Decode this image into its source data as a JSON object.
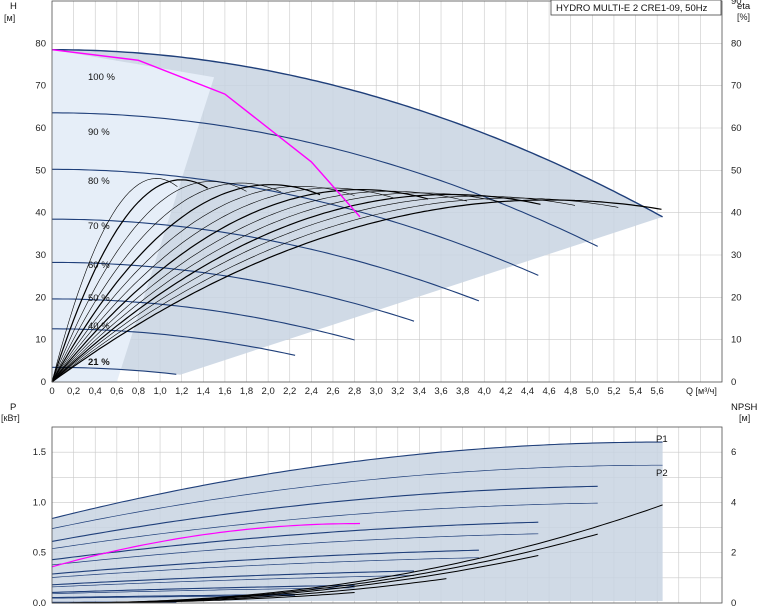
{
  "title": "HYDRO MULTI-E 2 CRE1-09, 50Hz",
  "colors": {
    "area_fill": "#c8d4e2",
    "curve_dark": "#1f3f7a",
    "efficiency": "#000000",
    "highlight": "#ff00ff",
    "grid": "#c9c9c9"
  },
  "chart_data": [
    {
      "type": "line",
      "name": "head",
      "ylabel": "H",
      "yunit": "[м]",
      "y2label": "eta",
      "y2unit": "[%]",
      "xlabel": "Q [м³/ч]",
      "xlim": [
        0,
        6.2
      ],
      "ylim": [
        0,
        90
      ],
      "y2lim": [
        0,
        90
      ],
      "x_ticks": [
        "0",
        "0,2",
        "0,4",
        "0,6",
        "0,8",
        "1,0",
        "1,2",
        "1,4",
        "1,6",
        "1,8",
        "2,0",
        "2,2",
        "2,4",
        "2,6",
        "2,8",
        "3,0",
        "3,2",
        "3,4",
        "3,6",
        "3,8",
        "4,0",
        "4,2",
        "4,4",
        "4,6",
        "4,8",
        "5,0",
        "5,2",
        "5,4",
        "5,6"
      ],
      "y_ticks": [
        "0",
        "10",
        "20",
        "30",
        "40",
        "50",
        "60",
        "70",
        "80"
      ],
      "y2_ticks": [
        "0",
        "10",
        "20",
        "30",
        "40",
        "50",
        "60",
        "70",
        "80",
        "90"
      ],
      "grid": true,
      "speed_labels": [
        "100 %",
        "90 %",
        "80 %",
        "70 %",
        "60 %",
        "50 %",
        "40 %",
        "21 %"
      ],
      "speeds": [
        1.0,
        0.9,
        0.8,
        0.7,
        0.6,
        0.5,
        0.4,
        0.21
      ],
      "curve_100": {
        "h0": 78.5,
        "qmax": 5.65,
        "hend": 39
      },
      "system_curve": {
        "x": [
          0,
          0.8,
          1.6,
          2.4,
          2.85
        ],
        "y": [
          78.5,
          76,
          68,
          52,
          39
        ]
      },
      "eta_100_peak": 43,
      "eta_peak_q": 4.6
    },
    {
      "type": "line",
      "name": "power",
      "ylabel": "P",
      "yunit": "[кВт]",
      "y2label": "NPSH",
      "y2unit": "[м]",
      "ylim": [
        0,
        1.75
      ],
      "y2lim": [
        0,
        7
      ],
      "y_ticks": [
        "0.0",
        "0.5",
        "1.0",
        "1.5"
      ],
      "y2_ticks": [
        "0",
        "2",
        "4",
        "6"
      ],
      "grid": true,
      "series_labels": [
        "P1",
        "P2"
      ],
      "p1_100": {
        "p0": 0.84,
        "peak": 1.6
      },
      "p2_100": {
        "p0": 0.74,
        "peak": 1.37
      },
      "npsh_max": 3.9
    }
  ]
}
